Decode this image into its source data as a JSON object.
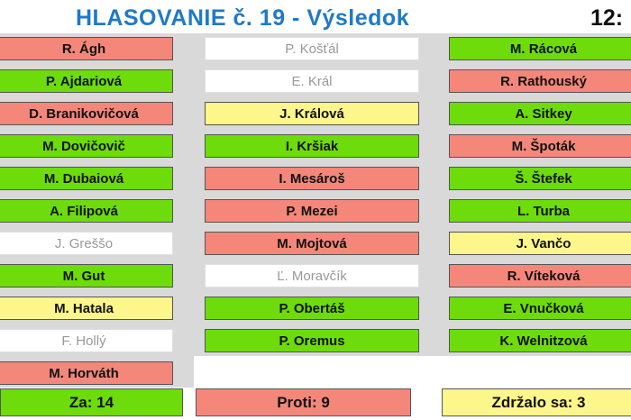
{
  "header": {
    "title": "HLASOVANIE č. 19 - Výsledok",
    "time": "12:"
  },
  "colors": {
    "za": "#6ddc0a",
    "proti": "#f4877a",
    "zdrzal": "#fdf68a",
    "nepritomny": "#ffffff",
    "title": "#1e7ac8"
  },
  "columns": [
    [
      {
        "name": "R. Ágh",
        "vote": "proti"
      },
      {
        "name": "P. Ajdariová",
        "vote": "za"
      },
      {
        "name": "D. Branikovičová",
        "vote": "proti"
      },
      {
        "name": "M. Dovičovič",
        "vote": "za"
      },
      {
        "name": "M. Dubaiová",
        "vote": "za"
      },
      {
        "name": "A. Filipová",
        "vote": "za"
      },
      {
        "name": "J. Greššo",
        "vote": "nepritomny"
      },
      {
        "name": "M. Gut",
        "vote": "za"
      },
      {
        "name": "M. Hatala",
        "vote": "zdrzal"
      },
      {
        "name": "F. Hollý",
        "vote": "nepritomny"
      },
      {
        "name": "M. Horváth",
        "vote": "proti"
      }
    ],
    [
      {
        "name": "P. Košťál",
        "vote": "nepritomny"
      },
      {
        "name": "E. Král",
        "vote": "nepritomny"
      },
      {
        "name": "J. Králová",
        "vote": "zdrzal"
      },
      {
        "name": "I. Kršiak",
        "vote": "za"
      },
      {
        "name": "I. Mesároš",
        "vote": "proti"
      },
      {
        "name": "P. Mezei",
        "vote": "proti"
      },
      {
        "name": "M. Mojtová",
        "vote": "proti"
      },
      {
        "name": "Ľ. Moravčík",
        "vote": "nepritomny"
      },
      {
        "name": "P. Obertáš",
        "vote": "za"
      },
      {
        "name": "P. Oremus",
        "vote": "za"
      }
    ],
    [
      {
        "name": "M. Rácová",
        "vote": "za"
      },
      {
        "name": "R. Rathouský",
        "vote": "proti"
      },
      {
        "name": "A. Sitkey",
        "vote": "za"
      },
      {
        "name": "M. Špoták",
        "vote": "proti"
      },
      {
        "name": "Š. Štefek",
        "vote": "za"
      },
      {
        "name": "L. Turba",
        "vote": "za"
      },
      {
        "name": "J. Vančo",
        "vote": "zdrzal"
      },
      {
        "name": "R. Víteková",
        "vote": "proti"
      },
      {
        "name": "E. Vnučková",
        "vote": "za"
      },
      {
        "name": "K. Welnitzová",
        "vote": "za"
      }
    ]
  ],
  "summary": {
    "za": "Za: 14",
    "proti": "Proti: 9",
    "zdrzal": "Zdržalo sa: 3"
  }
}
